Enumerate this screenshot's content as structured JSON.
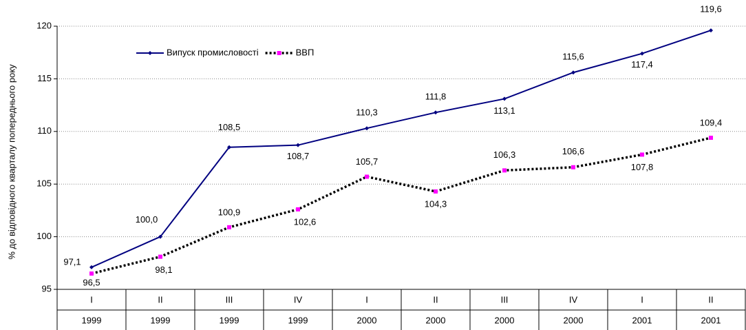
{
  "chart_data": {
    "type": "line",
    "y_label": "% до відповідного кварталу попереднього року",
    "categories": [
      "I",
      "II",
      "III",
      "IV",
      "I",
      "II",
      "III",
      "IV",
      "I",
      "II"
    ],
    "category_years": [
      "1999",
      "1999",
      "1999",
      "1999",
      "2000",
      "2000",
      "2000",
      "2000",
      "2001",
      "2001"
    ],
    "series": [
      {
        "name": "Випуск промисловості",
        "color": "#000080",
        "line_style": "solid",
        "marker_color": "#000080",
        "values": [
          97.1,
          100.0,
          108.5,
          108.7,
          110.3,
          111.8,
          113.1,
          115.6,
          117.4,
          119.6
        ],
        "value_labels": [
          "97,1",
          "100,0",
          "108,5",
          "108,7",
          "110,3",
          "111,8",
          "113,1",
          "115,6",
          "117,4",
          "119,6"
        ]
      },
      {
        "name": "ВВП",
        "color": "#000000",
        "line_style": "dotted",
        "marker_color": "#ff00ff",
        "values": [
          96.5,
          98.1,
          100.9,
          102.6,
          105.7,
          104.3,
          106.3,
          106.6,
          107.8,
          109.4
        ],
        "value_labels": [
          "96,5",
          "98,1",
          "100,9",
          "102,6",
          "105,7",
          "104,3",
          "106,3",
          "106,6",
          "107,8",
          "109,4"
        ]
      }
    ],
    "ylim": [
      95,
      120
    ],
    "yticks": [
      95,
      100,
      105,
      110,
      115,
      120
    ],
    "grid": true,
    "legend": "top-left"
  }
}
